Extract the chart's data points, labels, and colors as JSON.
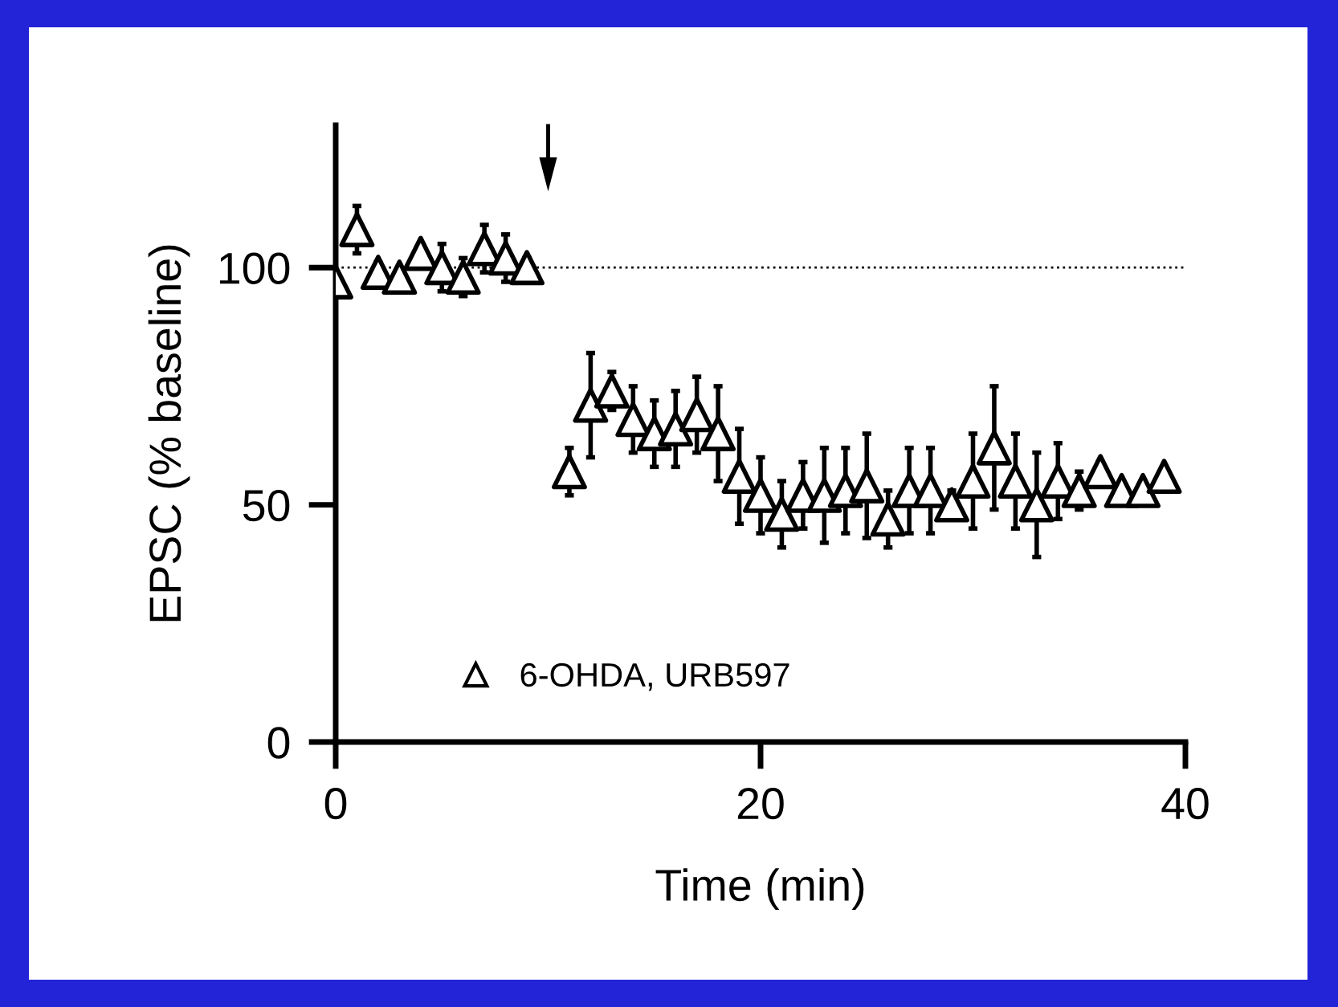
{
  "chart_data": {
    "type": "scatter",
    "xlabel": "Time (min)",
    "ylabel": "EPSC (% baseline)",
    "xlim": [
      0,
      40
    ],
    "ylim": [
      0,
      130
    ],
    "xticks": [
      0,
      20,
      40
    ],
    "yticks": [
      0,
      50,
      100
    ],
    "grid": false,
    "legend": "bottom left",
    "marker": "triangle",
    "series": [
      {
        "name": "6-OHDA, URB597",
        "color": "#000000",
        "x": [
          0,
          1,
          2,
          3,
          4,
          5,
          6,
          7,
          8,
          9,
          11,
          12,
          13,
          14,
          15,
          16,
          17,
          18,
          19,
          20,
          21,
          22,
          23,
          24,
          25,
          26,
          27,
          28,
          29,
          30,
          31,
          32,
          33,
          34,
          35,
          36,
          37,
          38,
          39
        ],
        "values": [
          97,
          108,
          99,
          98,
          103,
          100,
          98,
          104,
          102,
          100,
          57,
          71,
          74,
          68,
          65,
          66,
          69,
          65,
          56,
          52,
          48,
          52,
          52,
          53,
          54,
          47,
          53,
          53,
          50,
          55,
          62,
          55,
          50,
          55,
          53,
          57,
          53,
          53,
          56
        ],
        "errors": [
          null,
          5,
          2,
          1,
          2,
          5,
          4,
          5,
          5,
          2,
          5,
          11,
          4,
          7,
          7,
          8,
          8,
          10,
          10,
          8,
          7,
          7,
          10,
          9,
          11,
          6,
          9,
          9,
          3,
          10,
          13,
          10,
          11,
          8,
          4,
          2,
          null,
          null,
          null
        ]
      }
    ],
    "ref_lines": [
      {
        "axis": "y",
        "value": 100,
        "line_style": "dotted",
        "color": "#000000"
      }
    ]
  }
}
